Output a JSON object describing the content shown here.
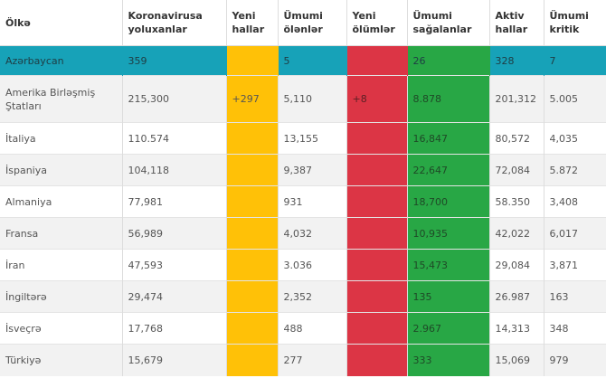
{
  "headers": {
    "country": "Ölkə",
    "cases": "Koronavirusa yoluxanlar",
    "new_cases": "Yeni hallar",
    "deaths": "Ümumi ölənlər",
    "new_deaths": "Yeni ölümlər",
    "recovered": "Ümumi sağalanlar",
    "active": "Aktiv hallar",
    "critical": "Ümumi kritik"
  },
  "rows": [
    {
      "country": "Azərbaycan",
      "cases": "359",
      "new_cases": "",
      "deaths": "5",
      "new_deaths": "",
      "recovered": "26",
      "active": "328",
      "critical": "7"
    },
    {
      "country": "Amerika Birləşmiş Ştatları",
      "cases": "215,300",
      "new_cases": "+297",
      "deaths": "5,110",
      "new_deaths": "+8",
      "recovered": "8.878",
      "active": "201,312",
      "critical": "5.005"
    },
    {
      "country": "İtaliya",
      "cases": "110.574",
      "new_cases": "",
      "deaths": "13,155",
      "new_deaths": "",
      "recovered": "16,847",
      "active": "80,572",
      "critical": "4,035"
    },
    {
      "country": "İspaniya",
      "cases": "104,118",
      "new_cases": "",
      "deaths": "9,387",
      "new_deaths": "",
      "recovered": "22,647",
      "active": "72,084",
      "critical": "5.872"
    },
    {
      "country": "Almaniya",
      "cases": "77,981",
      "new_cases": "",
      "deaths": "931",
      "new_deaths": "",
      "recovered": "18,700",
      "active": "58.350",
      "critical": "3,408"
    },
    {
      "country": "Fransa",
      "cases": "56,989",
      "new_cases": "",
      "deaths": "4,032",
      "new_deaths": "",
      "recovered": "10,935",
      "active": "42,022",
      "critical": "6,017"
    },
    {
      "country": "İran",
      "cases": "47,593",
      "new_cases": "",
      "deaths": "3.036",
      "new_deaths": "",
      "recovered": "15,473",
      "active": "29,084",
      "critical": "3,871"
    },
    {
      "country": "İngiltərə",
      "cases": "29,474",
      "new_cases": "",
      "deaths": "2,352",
      "new_deaths": "",
      "recovered": "135",
      "active": "26.987",
      "critical": "163"
    },
    {
      "country": "İsveçrə",
      "cases": "17,768",
      "new_cases": "",
      "deaths": "488",
      "new_deaths": "",
      "recovered": "2.967",
      "active": "14,313",
      "critical": "348"
    },
    {
      "country": "Türkiyə",
      "cases": "15,679",
      "new_cases": "",
      "deaths": "277",
      "new_deaths": "",
      "recovered": "333",
      "active": "15,069",
      "critical": "979"
    }
  ],
  "colors": {
    "highlight_row": "#17a2b8",
    "new_cases_column": "#ffc107",
    "new_deaths_column": "#dc3545",
    "recovered_column": "#28a745",
    "zebra_row": "#f2f2f2"
  }
}
